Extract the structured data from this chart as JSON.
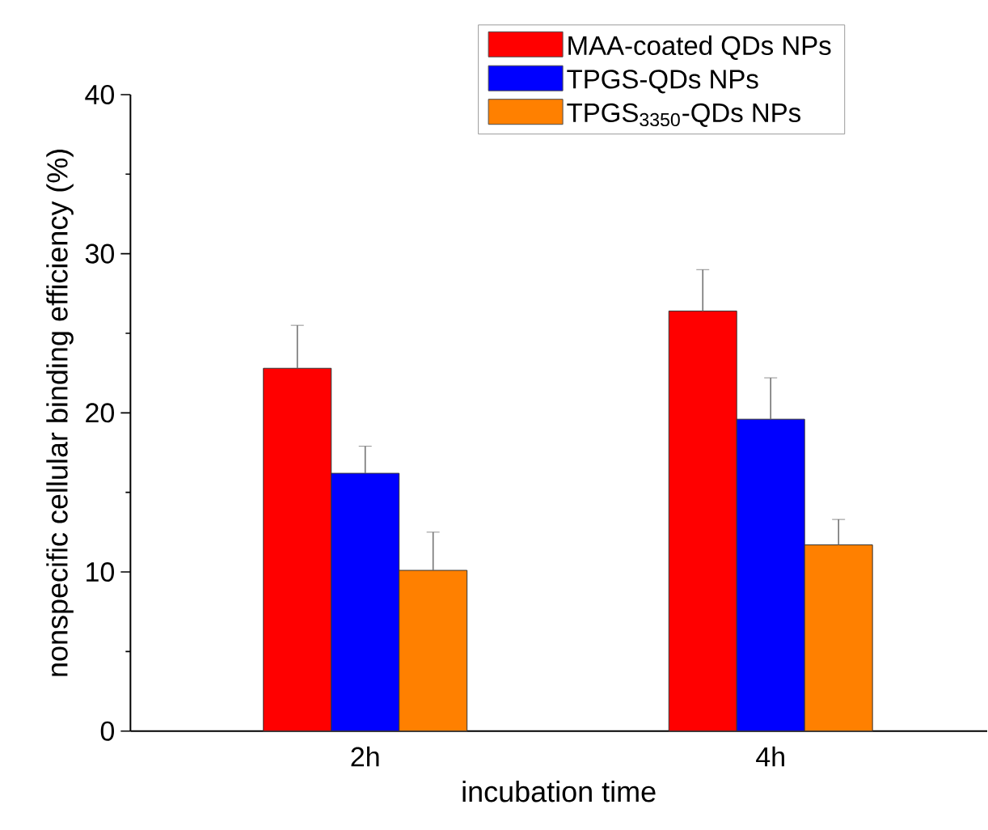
{
  "chart_data": {
    "type": "bar",
    "xlabel": "incubation time",
    "ylabel": "nonspecific cellular binding efficiency  (%)",
    "categories": [
      "2h",
      "4h"
    ],
    "series": [
      {
        "name": "MAA-coated QDs NPs",
        "color": "#ff0000",
        "values": [
          22.8,
          26.4
        ],
        "errors": [
          [
            22.8,
            25.5
          ],
          [
            26.4,
            29.0
          ]
        ]
      },
      {
        "name": "TPGS-QDs NPs",
        "color": "#0000ff",
        "values": [
          16.2,
          19.6
        ],
        "errors": [
          [
            16.2,
            17.9
          ],
          [
            19.6,
            22.2
          ]
        ]
      },
      {
        "name": "TPGS$_{3350}$-QDs NPs",
        "color": "#ff8000",
        "values": [
          10.1,
          11.7
        ],
        "errors": [
          [
            10.1,
            12.5
          ],
          [
            11.7,
            13.3
          ]
        ]
      }
    ],
    "ylim": [
      0,
      40
    ],
    "yticks": [
      0,
      {
        "value": 5,
        "label": null
      },
      10,
      {
        "value": 15,
        "label": null
      },
      20,
      {
        "value": 25,
        "label": null
      },
      30,
      {
        "value": 35,
        "label": null
      },
      40
    ],
    "grid": false,
    "legend": "top right"
  }
}
